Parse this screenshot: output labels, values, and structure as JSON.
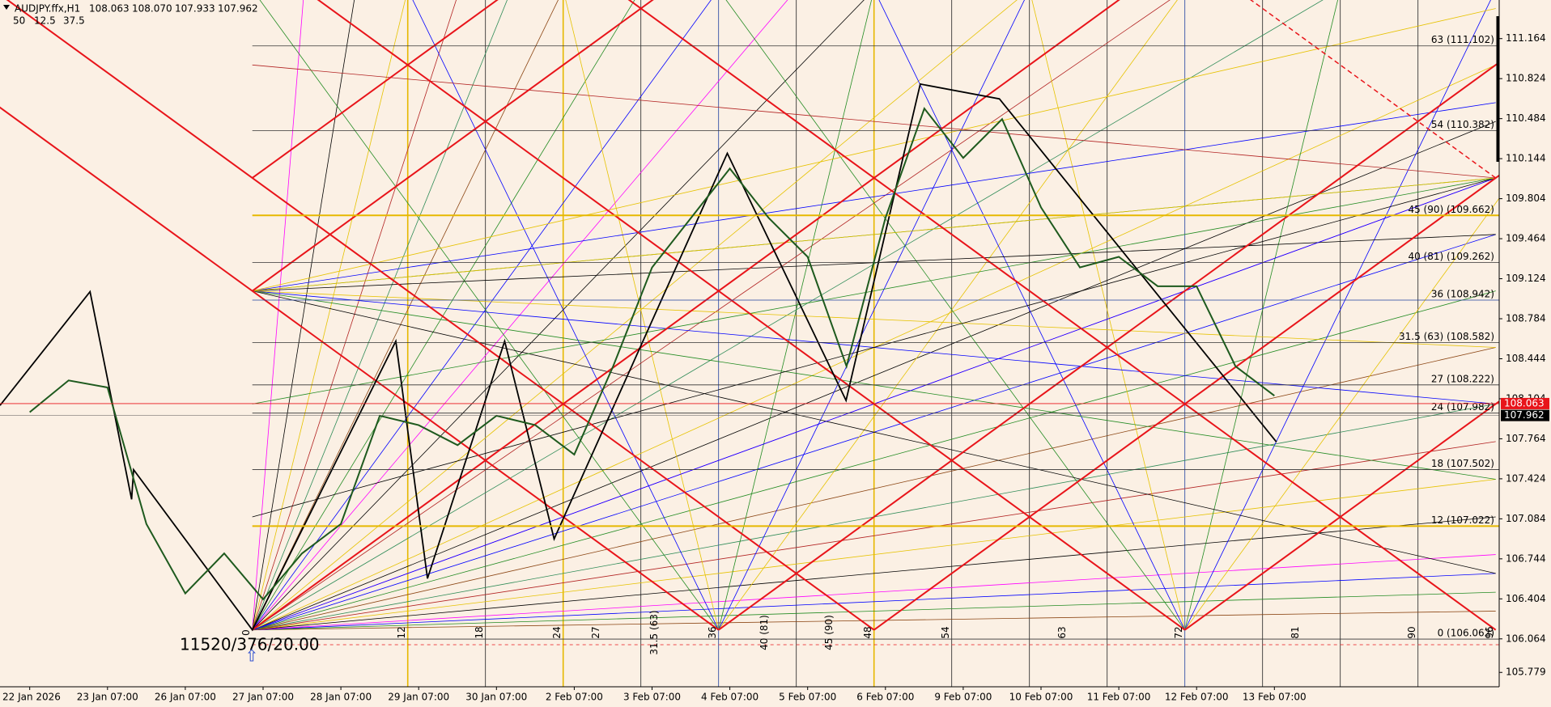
{
  "chart_data": {
    "type": "line",
    "symbol": "AUDJPY.ffx,H1",
    "ohlc": [
      "108.063",
      "108.070",
      "107.933",
      "107.962"
    ],
    "params": [
      50,
      12.5,
      37.5
    ],
    "annotation": "11520/376/20.00",
    "categories": [
      "22 Jan 2026",
      null,
      "23 Jan 07:00",
      null,
      "26 Jan 07:00",
      null,
      "27 Jan 07:00",
      null,
      "28 Jan 07:00",
      null,
      "29 Jan 07:00",
      null,
      "30 Jan 07:00",
      null,
      "2 Feb 07:00",
      null,
      "3 Feb 07:00",
      null,
      "4 Feb 07:00",
      null,
      "5 Feb 07:00",
      null,
      "6 Feb 07:00",
      null,
      "9 Feb 07:00",
      null,
      "10 Feb 07:00",
      null,
      "11 Feb 07:00",
      null,
      "12 Feb 07:00",
      null,
      "13 Feb 07:00"
    ],
    "values": [
      107.99,
      108.26,
      108.2,
      107.04,
      106.45,
      106.79,
      106.4,
      106.79,
      107.04,
      107.96,
      107.88,
      107.71,
      107.96,
      107.88,
      107.63,
      108.38,
      109.22,
      109.64,
      110.06,
      109.64,
      109.31,
      108.38,
      109.64,
      110.57,
      110.15,
      110.48,
      109.73,
      109.22,
      109.31,
      109.06,
      109.06,
      108.38,
      108.13
    ],
    "color": "#1e5a1e",
    "ylim": [
      105.657,
      111.492
    ],
    "yticks": [
      111.164,
      110.824,
      110.484,
      110.144,
      109.804,
      109.464,
      109.124,
      108.784,
      108.444,
      108.104,
      107.764,
      107.424,
      107.084,
      106.744,
      106.404,
      106.064,
      105.779
    ],
    "bid": 108.063,
    "last": 107.962,
    "levels": [
      {
        "value": 111.102,
        "label": "63 (111.102)"
      },
      {
        "value": 110.382,
        "label": "54 (110.382)"
      },
      {
        "value": 109.662,
        "label": "45 (90) (109.662)"
      },
      {
        "value": 109.262,
        "label": "40 (81) (109.262)"
      },
      {
        "value": 108.942,
        "label": "36 (108.942)"
      },
      {
        "value": 108.582,
        "label": "31.5 (63) (108.582)"
      },
      {
        "value": 108.222,
        "label": "27 (108.222)"
      },
      {
        "value": 107.982,
        "label": "24 (107.982)"
      },
      {
        "value": 107.502,
        "label": "18 (107.502)"
      },
      {
        "value": 107.022,
        "label": "12 (107.022)"
      },
      {
        "value": 106.062,
        "label": "0 (106.062)"
      }
    ],
    "fan_labels": [
      {
        "value": 0,
        "label": "0"
      },
      {
        "value": 12,
        "label": "12"
      },
      {
        "value": 18,
        "label": "18"
      },
      {
        "value": 24,
        "label": "24"
      },
      {
        "value": 27,
        "label": "27"
      },
      {
        "value": 31.5,
        "label": "31.5 (63)"
      },
      {
        "value": 36,
        "label": "36"
      },
      {
        "value": 40,
        "label": "40 (81)"
      },
      {
        "value": 45,
        "label": "45 (90)"
      },
      {
        "value": 48,
        "label": "48"
      },
      {
        "value": 54,
        "label": "54"
      },
      {
        "value": 63,
        "label": "63"
      },
      {
        "value": 72,
        "label": "72"
      },
      {
        "value": 81,
        "label": "81"
      },
      {
        "value": 90,
        "label": "90"
      },
      {
        "value": 96,
        "label": "96"
      }
    ]
  }
}
